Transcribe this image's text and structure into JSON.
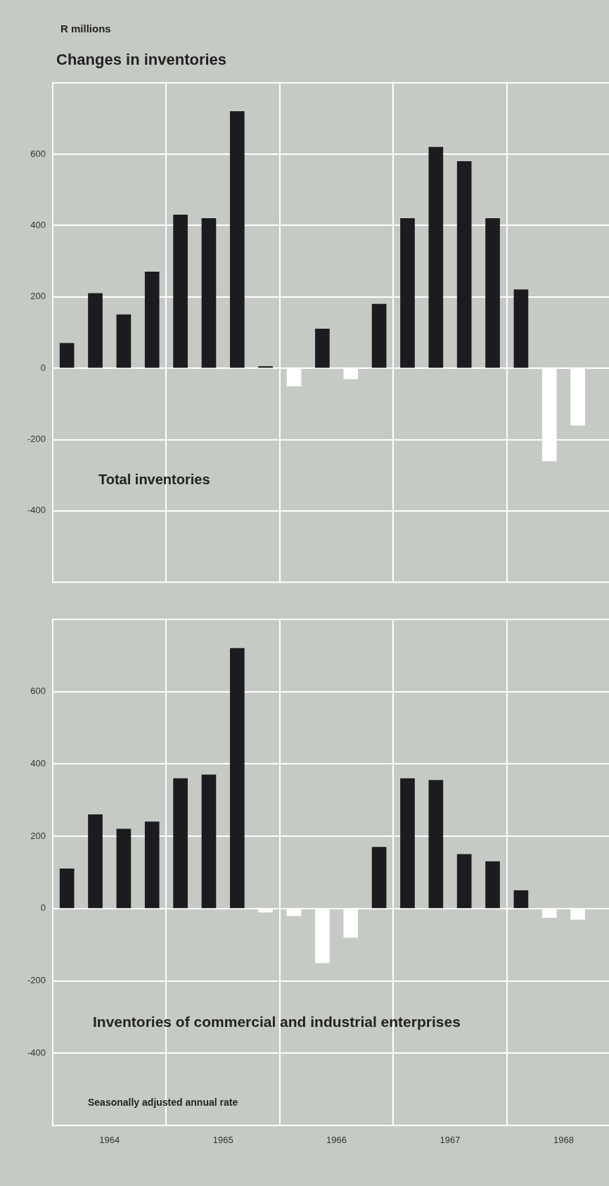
{
  "chart_data": [
    {
      "type": "bar",
      "title": "Changes in inventories",
      "ylabel": "R millions",
      "subtitle": "Total inventories",
      "x": [
        1964.125,
        1964.375,
        1964.625,
        1964.875,
        1965.125,
        1965.375,
        1965.625,
        1965.875,
        1966.125,
        1966.375,
        1966.625,
        1966.875,
        1967.125,
        1967.375,
        1967.625,
        1967.875,
        1968.125,
        1968.375,
        1968.625
      ],
      "values": [
        70,
        210,
        150,
        270,
        430,
        420,
        720,
        5,
        -50,
        110,
        -30,
        180,
        420,
        620,
        580,
        420,
        220,
        -260,
        -160
      ],
      "colors": [
        "#1c1b20",
        "#1c1b20",
        "#1c1b20",
        "#1c1b20",
        "#1c1b20",
        "#1c1b20",
        "#1c1b20",
        "#1c1b20",
        "#ffffff",
        "#1c1b20",
        "#ffffff",
        "#1c1b20",
        "#1c1b20",
        "#1c1b20",
        "#1c1b20",
        "#1c1b20",
        "#1c1b20",
        "#ffffff",
        "#ffffff"
      ],
      "xlim": [
        1964,
        1968.9
      ],
      "xticks": [
        {
          "value": 1965,
          "label": null
        },
        {
          "value": 1966,
          "label": null
        },
        {
          "value": 1967,
          "label": null
        },
        {
          "value": 1968,
          "label": null
        }
      ],
      "ylim": [
        -600,
        800
      ],
      "yticks": [
        -400,
        -200,
        0,
        200,
        400,
        600
      ],
      "grid": true,
      "tick_labels": "y"
    },
    {
      "type": "bar",
      "title": "Inventories of commercial and industrial enterprises",
      "annotations": [
        "Seasonally adjusted annual rate"
      ],
      "x": [
        1964.125,
        1964.375,
        1964.625,
        1964.875,
        1965.125,
        1965.375,
        1965.625,
        1965.875,
        1966.125,
        1966.375,
        1966.625,
        1966.875,
        1967.125,
        1967.375,
        1967.625,
        1967.875,
        1968.125,
        1968.375,
        1968.625
      ],
      "values": [
        110,
        260,
        220,
        240,
        360,
        370,
        720,
        -10,
        -20,
        -150,
        -80,
        170,
        360,
        355,
        150,
        130,
        50,
        -25,
        -30
      ],
      "colors": [
        "#1c1b20",
        "#1c1b20",
        "#1c1b20",
        "#1c1b20",
        "#1c1b20",
        "#1c1b20",
        "#1c1b20",
        "#ffffff",
        "#ffffff",
        "#ffffff",
        "#ffffff",
        "#1c1b20",
        "#1c1b20",
        "#1c1b20",
        "#1c1b20",
        "#1c1b20",
        "#1c1b20",
        "#ffffff",
        "#ffffff"
      ],
      "xlim": [
        1964,
        1968.9
      ],
      "xticks": [
        {
          "value": 1964.5,
          "label": "1964"
        },
        {
          "value": 1965,
          "label": null
        },
        {
          "value": 1965.5,
          "label": "1965"
        },
        {
          "value": 1966,
          "label": null
        },
        {
          "value": 1966.5,
          "label": "1966"
        },
        {
          "value": 1967,
          "label": null
        },
        {
          "value": 1967.5,
          "label": "1967"
        },
        {
          "value": 1968,
          "label": null
        },
        {
          "value": 1968.5,
          "label": "1968"
        }
      ],
      "ylim": [
        -600,
        800
      ],
      "yticks": [
        -400,
        -200,
        0,
        200,
        400,
        600
      ],
      "grid": true
    }
  ]
}
